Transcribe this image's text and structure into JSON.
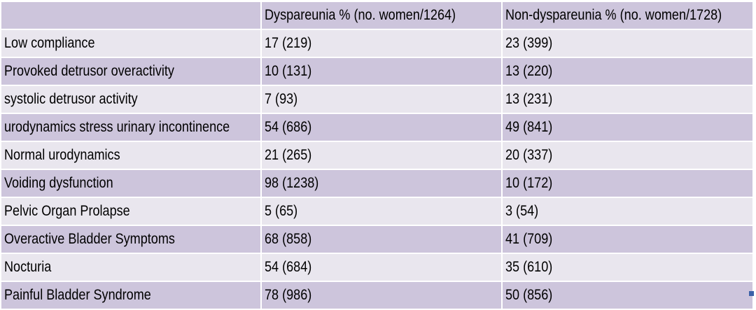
{
  "table": {
    "header": [
      "",
      "Dyspareunia % (no. women/1264)",
      "Non-dyspareunia % (no. women/1728)"
    ],
    "rows": [
      [
        "Low compliance",
        "17 (219)",
        "23 (399)"
      ],
      [
        "Provoked detrusor overactivity",
        "10 (131)",
        "13 (220)"
      ],
      [
        "systolic detrusor activity",
        "7 (93)",
        "13 (231)"
      ],
      [
        "urodynamics stress urinary incontinence",
        "54 (686)",
        "49 (841)"
      ],
      [
        "Normal urodynamics",
        "21 (265)",
        "20 (337)"
      ],
      [
        "Voiding dysfunction",
        "98 (1238)",
        "10 (172)"
      ],
      [
        "Pelvic Organ Prolapse",
        "5 (65)",
        "3 (54)"
      ],
      [
        "Overactive Bladder Symptoms",
        "68 (858)",
        "41 (709)"
      ],
      [
        "Nocturia",
        "54 (684)",
        "35 (610)"
      ],
      [
        "Painful Bladder Syndrome",
        "78 (986)",
        "50 (856)"
      ]
    ]
  },
  "colors": {
    "row_light": "#e9e6ee",
    "row_dark": "#cdc5dc",
    "corner_mark": "#3c62a8"
  }
}
